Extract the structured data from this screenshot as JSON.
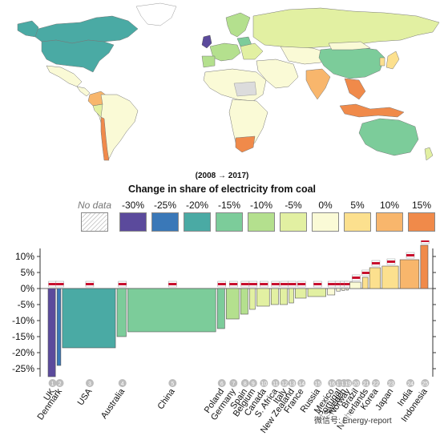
{
  "header": {
    "period": "(2008 → 2017)",
    "title": "Change in share of electricity from coal"
  },
  "legend": {
    "no_data": "No data",
    "bins": [
      {
        "label": "-30%",
        "color": "#5b4a9c"
      },
      {
        "label": "-25%",
        "color": "#3a78b8"
      },
      {
        "label": "-20%",
        "color": "#4aaaa4"
      },
      {
        "label": "-15%",
        "color": "#7ccc9a"
      },
      {
        "label": "-10%",
        "color": "#b4e08e"
      },
      {
        "label": "-5%",
        "color": "#e2f0a2"
      },
      {
        "label": "0%",
        "color": "#fafad6"
      },
      {
        "label": "5%",
        "color": "#fce08e"
      },
      {
        "label": "10%",
        "color": "#f8b66c"
      },
      {
        "label": "15%",
        "color": "#f08a4a"
      }
    ]
  },
  "chart_data": {
    "type": "bar",
    "ylabel": "",
    "ylim": [
      -27.5,
      12.5
    ],
    "yticks": [
      "10%",
      "5%",
      "0%",
      "-5%",
      "-10%",
      "-15%",
      "-20%",
      "-25%"
    ],
    "categories": [
      {
        "rank": "1",
        "name": "UK",
        "value": -27.5,
        "weight": 1.0,
        "color": "#5b4a9c"
      },
      {
        "rank": "2",
        "name": "Denmark",
        "value": -24.0,
        "weight": 0.6,
        "color": "#3a78b8"
      },
      {
        "rank": "3",
        "name": "USA",
        "value": -18.5,
        "weight": 6.1,
        "color": "#4aaaa4"
      },
      {
        "rank": "4",
        "name": "Australia",
        "value": -15.0,
        "weight": 1.2,
        "color": "#7ccc9a"
      },
      {
        "rank": "5",
        "name": "China",
        "value": -13.5,
        "weight": 10.0,
        "color": "#7ccc9a"
      },
      {
        "rank": "6",
        "name": "Poland",
        "value": -12.5,
        "weight": 1.0,
        "color": "#7ccc9a"
      },
      {
        "rank": "7",
        "name": "Germany",
        "value": -9.5,
        "weight": 1.6,
        "color": "#b4e08e"
      },
      {
        "rank": "8",
        "name": "Spain",
        "value": -8.0,
        "weight": 1.0,
        "color": "#b4e08e"
      },
      {
        "rank": "9",
        "name": "Belgium",
        "value": -6.5,
        "weight": 0.8,
        "color": "#e2f0a2"
      },
      {
        "rank": "10",
        "name": "Canada",
        "value": -5.5,
        "weight": 1.6,
        "color": "#e2f0a2"
      },
      {
        "rank": "11",
        "name": "S. Africa",
        "value": -5.0,
        "weight": 1.0,
        "color": "#e2f0a2"
      },
      {
        "rank": "12",
        "name": "Italy",
        "value": -5.0,
        "weight": 1.0,
        "color": "#e2f0a2"
      },
      {
        "rank": "13",
        "name": "New Zealand",
        "value": -4.5,
        "weight": 0.7,
        "color": "#e2f0a2"
      },
      {
        "rank": "14",
        "name": "France",
        "value": -3.0,
        "weight": 1.4,
        "color": "#e2f0a2"
      },
      {
        "rank": "15",
        "name": "Russia",
        "value": -2.5,
        "weight": 2.2,
        "color": "#e2f0a2"
      },
      {
        "rank": "16",
        "name": "Mexico",
        "value": -2.0,
        "weight": 1.0,
        "color": "#fafad6"
      },
      {
        "rank": "17",
        "name": "Portugal",
        "value": -0.8,
        "weight": 0.6,
        "color": "#fafad6"
      },
      {
        "rank": "18",
        "name": "Sweden",
        "value": -0.6,
        "weight": 0.5,
        "color": "#fafad6"
      },
      {
        "rank": "19",
        "name": "Norway",
        "value": -0.5,
        "weight": 0.4,
        "color": "#fafad6"
      },
      {
        "rank": "20",
        "name": "Brazil",
        "value": 2.0,
        "weight": 1.4,
        "color": "#fafad6"
      },
      {
        "rank": "21",
        "name": "Netherlands",
        "value": 3.5,
        "weight": 0.8,
        "color": "#fce08e"
      },
      {
        "rank": "22",
        "name": "Korea",
        "value": 6.5,
        "weight": 1.4,
        "color": "#fce08e"
      },
      {
        "rank": "23",
        "name": "Japan",
        "value": 7.0,
        "weight": 2.0,
        "color": "#fce08e"
      },
      {
        "rank": "24",
        "name": "India",
        "value": 9.0,
        "weight": 2.3,
        "color": "#f8b66c"
      },
      {
        "rank": "25",
        "name": "Indonesia",
        "value": 13.5,
        "weight": 1.0,
        "color": "#f08a4a"
      }
    ]
  },
  "watermark": "微信号: Energy-report"
}
